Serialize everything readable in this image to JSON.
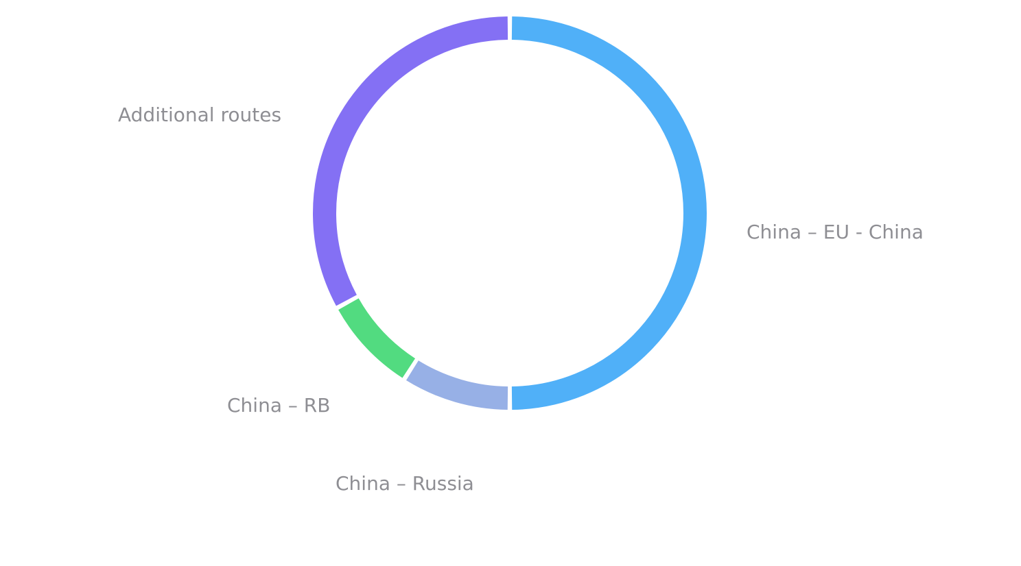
{
  "chart_data": {
    "type": "donut",
    "categories": [
      "China – EU - China",
      "China – Russia",
      "China – RB",
      "Additional routes"
    ],
    "values": [
      50,
      9,
      8,
      33
    ],
    "colors": [
      "#50b0f8",
      "#97b0e6",
      "#52db80",
      "#8470f4"
    ]
  }
}
